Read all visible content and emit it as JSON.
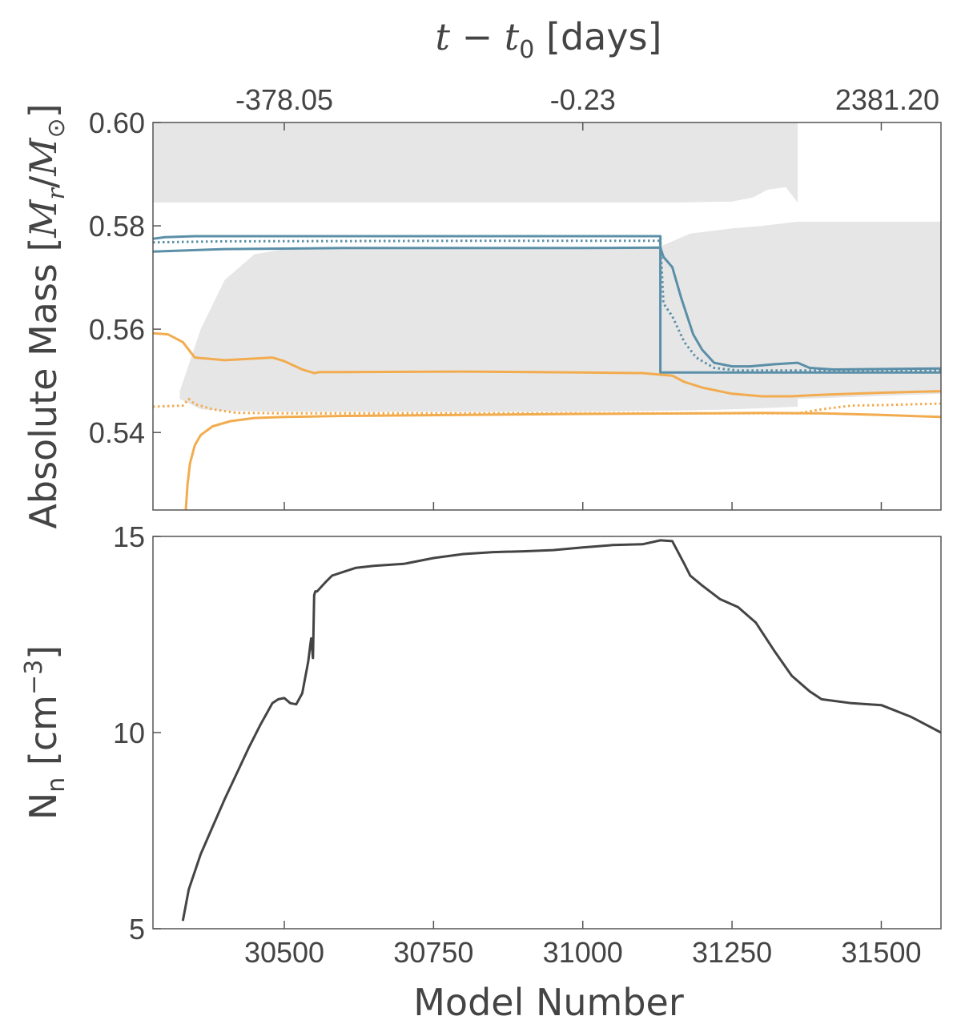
{
  "colors": {
    "blue": "#5b8fa8",
    "orange": "#f2ac4f",
    "shade": "#e6e6e6",
    "dark": "#444444",
    "axis": "#555555"
  },
  "chart_data": [
    {
      "type": "line",
      "xlabel": "Model Number",
      "ylabel": "Absolute Mass [M_r / M_⊙]",
      "top_axis_label": "t − t₀ [days]",
      "xlim": [
        30280,
        31600
      ],
      "ylim": [
        0.525,
        0.6
      ],
      "y_ticks": [
        0.54,
        0.56,
        0.58,
        0.6
      ],
      "y_tick_labels": [
        "0.54",
        "0.56",
        "0.58",
        "0.60"
      ],
      "x_ticks": [
        30500,
        30750,
        31000,
        31250,
        31500
      ],
      "top_ticks": [
        30500,
        31000,
        31500
      ],
      "top_tick_labels": [
        "-378.05",
        "-0.23",
        "2381.20"
      ],
      "grid": false,
      "shaded_regions": [
        {
          "x": [
            30280,
            30700,
            31000,
            31150,
            31250,
            31285,
            31310,
            31340,
            31360,
            31360,
            31600
          ],
          "y_low": [
            0.6,
            0.6,
            0.6,
            0.6,
            0.6,
            0.6,
            0.6,
            0.6,
            0.6,
            0.6,
            0.6
          ],
          "y_high": [
            0.5845,
            0.5845,
            0.5845,
            0.5845,
            0.5847,
            0.5855,
            0.587,
            0.5875,
            0.5845,
            0.6,
            0.6
          ]
        },
        {
          "x": [
            30325,
            30360,
            30400,
            30450,
            30500,
            30600,
            30800,
            31000,
            31130,
            31180,
            31250,
            31300,
            31360,
            31360,
            31600
          ],
          "y_top": [
            0.548,
            0.56,
            0.5695,
            0.5745,
            0.5755,
            0.5758,
            0.5758,
            0.5758,
            0.576,
            0.5785,
            0.5795,
            0.58,
            0.5808,
            0.5808,
            0.5808
          ],
          "y_bottom": [
            0.5465,
            0.5445,
            0.5442,
            0.5441,
            0.544,
            0.544,
            0.544,
            0.544,
            0.5442,
            0.5443,
            0.5445,
            0.5447,
            0.545,
            0.5465,
            0.5475
          ]
        }
      ],
      "series": [
        {
          "color": "blue",
          "dash": "solid",
          "x": [
            30280,
            30300,
            30350,
            30600,
            30800,
            31000,
            31130,
            31130,
            31600
          ],
          "y": [
            0.5775,
            0.5778,
            0.578,
            0.578,
            0.578,
            0.578,
            0.578,
            0.5516,
            0.5516
          ]
        },
        {
          "color": "blue",
          "dash": "solid",
          "x": [
            30280,
            30400,
            30600,
            30800,
            31000,
            31130,
            31135,
            31150,
            31165,
            31185,
            31200,
            31220,
            31250,
            31280,
            31320,
            31360,
            31380,
            31420,
            31600
          ],
          "y": [
            0.575,
            0.5755,
            0.5757,
            0.5757,
            0.5757,
            0.5758,
            0.574,
            0.572,
            0.566,
            0.559,
            0.556,
            0.5535,
            0.5528,
            0.5528,
            0.5532,
            0.5535,
            0.5525,
            0.5522,
            0.5524
          ]
        },
        {
          "color": "blue",
          "dash": "dotted",
          "x": [
            30280,
            30400,
            30800,
            31000,
            31130,
            31135,
            31150,
            31170,
            31190,
            31220,
            31260,
            31600
          ],
          "y": [
            0.5768,
            0.577,
            0.5771,
            0.5771,
            0.5771,
            0.565,
            0.5625,
            0.5575,
            0.5545,
            0.5525,
            0.552,
            0.552
          ]
        },
        {
          "color": "orange",
          "dash": "solid",
          "x": [
            30280,
            30305,
            30330,
            30350,
            30400,
            30450,
            30480,
            30500,
            30530,
            30550,
            30560,
            30600,
            30800,
            31000,
            31100,
            31150,
            31170,
            31200,
            31250,
            31300,
            31350,
            31400,
            31500,
            31600
          ],
          "y": [
            0.5592,
            0.559,
            0.5575,
            0.5545,
            0.554,
            0.5543,
            0.5545,
            0.5538,
            0.5522,
            0.5515,
            0.5517,
            0.5517,
            0.5518,
            0.5516,
            0.5515,
            0.551,
            0.5498,
            0.5487,
            0.5475,
            0.547,
            0.547,
            0.5473,
            0.5477,
            0.548
          ]
        },
        {
          "color": "orange",
          "dash": "solid",
          "x": [
            30335,
            30338,
            30342,
            30350,
            30360,
            30380,
            30410,
            30450,
            30500,
            30600,
            30800,
            31000,
            31200,
            31300,
            31400,
            31500,
            31600
          ],
          "y": [
            0.525,
            0.53,
            0.534,
            0.5375,
            0.5395,
            0.5412,
            0.5422,
            0.5428,
            0.543,
            0.5432,
            0.5434,
            0.5436,
            0.5437,
            0.5438,
            0.5437,
            0.5434,
            0.543
          ]
        },
        {
          "color": "orange",
          "dash": "dotted",
          "x": [
            30280,
            30330,
            30340,
            30350,
            30380,
            30420,
            30500,
            30800,
            31000,
            31200,
            31300,
            31360,
            31400,
            31450,
            31500,
            31600
          ],
          "y": [
            0.545,
            0.5452,
            0.5465,
            0.5455,
            0.5445,
            0.5438,
            0.5437,
            0.5437,
            0.5437,
            0.5437,
            0.5437,
            0.5437,
            0.5445,
            0.5452,
            0.5453,
            0.5456
          ]
        }
      ]
    },
    {
      "type": "line",
      "xlabel": "Model Number",
      "ylabel": "N_n [cm^-3]",
      "xlim": [
        30280,
        31600
      ],
      "ylim": [
        5,
        15
      ],
      "y_ticks": [
        5,
        10,
        15
      ],
      "y_tick_labels": [
        "5",
        "10",
        "15"
      ],
      "x_ticks": [
        30500,
        30750,
        31000,
        31250,
        31500
      ],
      "x_tick_labels": [
        "30500",
        "30750",
        "31000",
        "31250",
        "31500"
      ],
      "grid": false,
      "series": [
        {
          "color": "dark",
          "dash": "solid",
          "x": [
            30330,
            30340,
            30360,
            30380,
            30400,
            30420,
            30440,
            30460,
            30480,
            30490,
            30500,
            30510,
            30520,
            30530,
            30540,
            30545,
            30548,
            30550,
            30552,
            30555,
            30570,
            30580,
            30600,
            30620,
            30650,
            30700,
            30750,
            30800,
            30850,
            30900,
            30950,
            31000,
            31050,
            31100,
            31130,
            31150,
            31170,
            31180,
            31200,
            31230,
            31260,
            31290,
            31320,
            31350,
            31380,
            31400,
            31450,
            31500,
            31550,
            31600
          ],
          "y": [
            5.2,
            6.0,
            6.9,
            7.6,
            8.3,
            8.95,
            9.6,
            10.2,
            10.75,
            10.85,
            10.88,
            10.75,
            10.72,
            11.0,
            11.8,
            12.4,
            11.9,
            13.5,
            13.6,
            13.6,
            13.85,
            14.0,
            14.1,
            14.2,
            14.25,
            14.3,
            14.45,
            14.55,
            14.6,
            14.62,
            14.65,
            14.72,
            14.78,
            14.8,
            14.9,
            14.88,
            14.3,
            14.0,
            13.75,
            13.4,
            13.2,
            12.8,
            12.1,
            11.45,
            11.05,
            10.85,
            10.75,
            10.7,
            10.4,
            10.0
          ]
        }
      ]
    }
  ]
}
